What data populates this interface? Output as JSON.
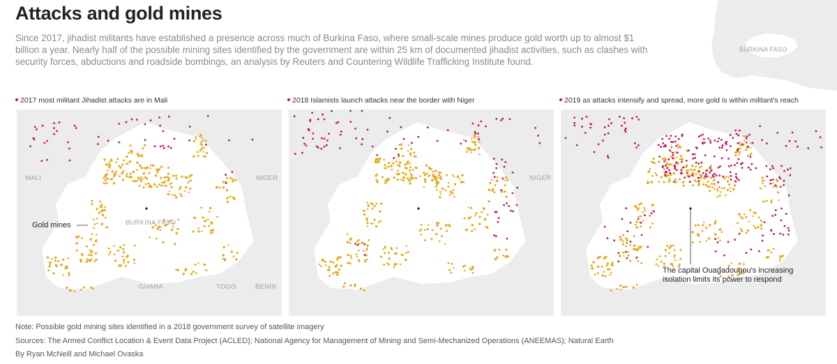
{
  "header": {
    "title": "Attacks and gold mines",
    "intro": "Since 2017, jihadist militants have established a presence across much of Burkina Faso, where small-scale mines produce gold worth up to almost $1 billion a year. Nearly half of the possible mining sites identified by the government are within 25 km of documented jihadist activities, such as clashes with security forces, abductions and roadside bombings, an analysis by Reuters and Countering Wildlife Trafficking Institute found."
  },
  "locator": {
    "label": "BURKINA FASO"
  },
  "panels": [
    {
      "caption": "2017 most militant Jihadist attacks are in Mali",
      "labels": {
        "mali": "MALI",
        "niger": "NIGER",
        "burkina": "BURKINA FASO",
        "ghana": "GHANA",
        "togo": "TOGO",
        "benin": "BENIN"
      },
      "annotation": "Gold mines"
    },
    {
      "caption": "2018 Islamists launch attacks near the border with Niger",
      "labels": {
        "niger": "NIGER"
      }
    },
    {
      "caption": "2019 as attacks intensify and spread, more gold is within militant's reach",
      "annotation_line1": "The capital Ouagadougou's increasing",
      "annotation_line2": "isolation limits its power to respond"
    }
  ],
  "colors": {
    "gold": "#e6a91e",
    "attack": "#c4145a",
    "land": "#ececec",
    "burkina": "#ffffff",
    "capital": "#111111"
  },
  "footer": {
    "note": "Note: Possible gold mining sites identified in a 2018 government survey of satellite imagery",
    "sources": "Sources: The Armed Conflict Location & Event Data Project (ACLED); National Agency for Management of Mining and Semi-Mechanized Operations (ANEEMAS); Natural Earth",
    "byline": "By Ryan McNeill and Michael Ovaska"
  }
}
